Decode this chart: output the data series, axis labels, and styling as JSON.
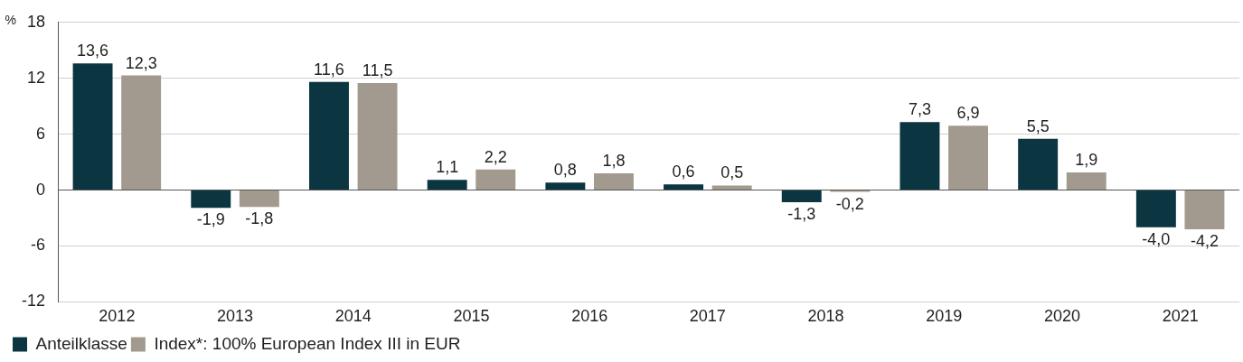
{
  "chart_data": {
    "type": "bar",
    "ylabel": "%",
    "categories": [
      "2012",
      "2013",
      "2014",
      "2015",
      "2016",
      "2017",
      "2018",
      "2019",
      "2020",
      "2021"
    ],
    "series": [
      {
        "name": "Anteilklasse",
        "color": "#0b3541",
        "values": [
          13.6,
          -1.9,
          11.6,
          1.1,
          0.8,
          0.6,
          -1.3,
          7.3,
          5.5,
          -4.0
        ],
        "value_labels": [
          "13,6",
          "-1,9",
          "11,6",
          "1,1",
          "0,8",
          "0,6",
          "-1,3",
          "7,3",
          "5,5",
          "-4,0"
        ]
      },
      {
        "name": "Index*: 100% European Index III in EUR",
        "color": "#a39a8f",
        "values": [
          12.3,
          -1.8,
          11.5,
          2.2,
          1.8,
          0.5,
          -0.2,
          6.9,
          1.9,
          -4.2
        ],
        "value_labels": [
          "12,3",
          "-1,8",
          "11,5",
          "2,2",
          "1,8",
          "0,5",
          "-0,2",
          "6,9",
          "1,9",
          "-4,2"
        ]
      }
    ],
    "ylim": [
      -12,
      18
    ],
    "yticks": [
      18,
      12,
      6,
      0,
      -6,
      -12
    ],
    "grid": "y",
    "legend": "bottom left"
  }
}
